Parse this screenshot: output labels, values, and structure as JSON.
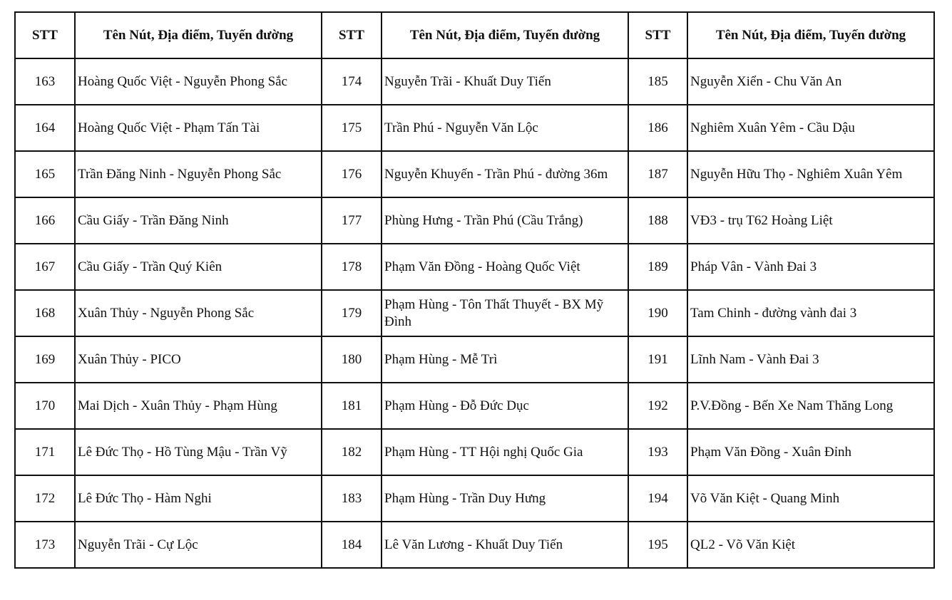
{
  "table": {
    "headers": [
      "STT",
      "Tên Nút, Địa điểm, Tuyến đường",
      "STT",
      "Tên Nút, Địa điểm, Tuyến đường",
      "STT",
      "Tên Nút, Địa điểm, Tuyến đường"
    ],
    "rows": [
      [
        "163",
        "Hoàng Quốc Việt - Nguyễn Phong Sắc",
        "174",
        "Nguyễn Trãi - Khuất Duy Tiến",
        "185",
        "Nguyễn Xiển - Chu Văn An"
      ],
      [
        "164",
        "Hoàng Quốc Việt - Phạm Tấn Tài",
        "175",
        "Trần Phú - Nguyễn Văn Lộc",
        "186",
        "Nghiêm Xuân Yêm - Cầu Dậu"
      ],
      [
        "165",
        "Trần Đăng Ninh - Nguyễn Phong Sắc",
        "176",
        "Nguyễn Khuyến - Trần Phú - đường 36m",
        "187",
        "Nguyễn Hữu Thọ - Nghiêm Xuân Yêm"
      ],
      [
        "166",
        "Cầu Giấy - Trần Đăng Ninh",
        "177",
        "Phùng Hưng - Trần Phú (Cầu Trắng)",
        "188",
        "VĐ3 - trụ T62 Hoàng Liệt"
      ],
      [
        "167",
        "Cầu Giấy - Trần Quý Kiên",
        "178",
        "Phạm Văn Đồng - Hoàng Quốc Việt",
        "189",
        "Pháp Vân - Vành Đai 3"
      ],
      [
        "168",
        "Xuân Thủy - Nguyễn Phong Sắc",
        "179",
        "Phạm Hùng - Tôn Thất Thuyết - BX Mỹ Đình",
        "190",
        "Tam Chinh - đường vành đai 3"
      ],
      [
        "169",
        "Xuân Thủy - PICO",
        "180",
        "Phạm Hùng - Mễ Trì",
        "191",
        "Lĩnh Nam - Vành Đai 3"
      ],
      [
        "170",
        "Mai Dịch - Xuân Thủy - Phạm Hùng",
        "181",
        "Phạm Hùng - Đỗ Đức Dục",
        "192",
        "P.V.Đồng - Bến Xe Nam Thăng Long"
      ],
      [
        "171",
        "Lê Đức Thọ - Hồ Tùng Mậu - Trần Vỹ",
        "182",
        "Phạm Hùng - TT Hội nghị Quốc Gia",
        "193",
        "Phạm Văn Đồng - Xuân Đỉnh"
      ],
      [
        "172",
        "Lê Đức Thọ - Hàm Nghi",
        "183",
        "Phạm Hùng - Trần Duy Hưng",
        "194",
        "Võ Văn Kiệt - Quang Minh"
      ],
      [
        "173",
        "Nguyễn Trãi - Cự Lộc",
        "184",
        "Lê Văn Lương - Khuất Duy Tiến",
        "195",
        "QL2 - Võ Văn Kiệt"
      ]
    ]
  }
}
